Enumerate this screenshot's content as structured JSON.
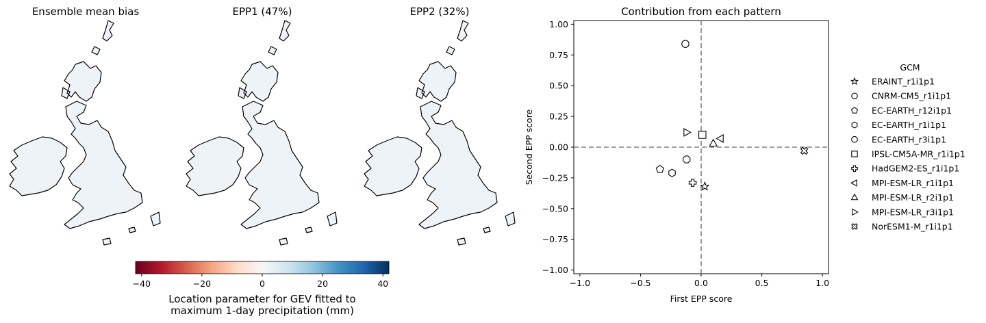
{
  "maps": [
    {
      "title": "Ensemble mean bias"
    },
    {
      "title": "EPP1 (47%)"
    },
    {
      "title": "EPP2 (32%)"
    }
  ],
  "colorbar": {
    "ticks": [
      "−40",
      "−20",
      "0",
      "20",
      "40"
    ],
    "range": [
      -42,
      42
    ],
    "label_line1": "Location parameter for GEV fitted to",
    "label_line2": "maximum 1-day precipitation (mm)",
    "colormap": "RdBu"
  },
  "scatter": {
    "title": "Contribution from each pattern",
    "xlabel": "First EPP score",
    "ylabel": "Second EPP score",
    "xticks": [
      "−1.0",
      "−0.5",
      "0.0",
      "0.5",
      "1.0"
    ],
    "yticks": [
      "1.00",
      "0.75",
      "0.50",
      "0.25",
      "0.00",
      "−0.25",
      "−0.50",
      "−0.75",
      "−1.00"
    ],
    "legend_title": "GCM"
  },
  "chart_data": {
    "type": "scatter",
    "title": "Contribution from each pattern",
    "xlabel": "First EPP score",
    "ylabel": "Second EPP score",
    "xlim": [
      -1.05,
      1.05
    ],
    "ylim": [
      -1.03,
      1.03
    ],
    "grid": false,
    "legend_placement": "right",
    "reference_lines": {
      "x": 0,
      "y": 0,
      "style": "dashed",
      "color": "#808080"
    },
    "series": [
      {
        "name": "ERAINT_r1i1p1",
        "marker": "star",
        "x": 0.03,
        "y": -0.32
      },
      {
        "name": "CNRM-CM5_r1i1p1",
        "marker": "circle",
        "x": -0.13,
        "y": 0.84
      },
      {
        "name": "EC-EARTH_r12i1p1",
        "marker": "pentagon",
        "x": -0.34,
        "y": -0.18
      },
      {
        "name": "EC-EARTH_r1i1p1",
        "marker": "hexagon",
        "x": -0.24,
        "y": -0.21
      },
      {
        "name": "EC-EARTH_r3i1p1",
        "marker": "octagon",
        "x": -0.12,
        "y": -0.1
      },
      {
        "name": "IPSL-CM5A-MR_r1i1p1",
        "marker": "square",
        "x": 0.01,
        "y": 0.1
      },
      {
        "name": "HadGEM2-ES_r1i1p1",
        "marker": "plus",
        "x": -0.07,
        "y": -0.29
      },
      {
        "name": "MPI-ESM-LR_r1i1p1",
        "marker": "triangle-left",
        "x": 0.16,
        "y": 0.07
      },
      {
        "name": "MPI-ESM-LR_r2i1p1",
        "marker": "triangle-up",
        "x": 0.1,
        "y": 0.03
      },
      {
        "name": "MPI-ESM-LR_r3i1p1",
        "marker": "triangle-right",
        "x": -0.12,
        "y": 0.12
      },
      {
        "name": "NorESM1-M_r1i1p1",
        "marker": "x-filled",
        "x": 0.85,
        "y": -0.03
      }
    ]
  }
}
